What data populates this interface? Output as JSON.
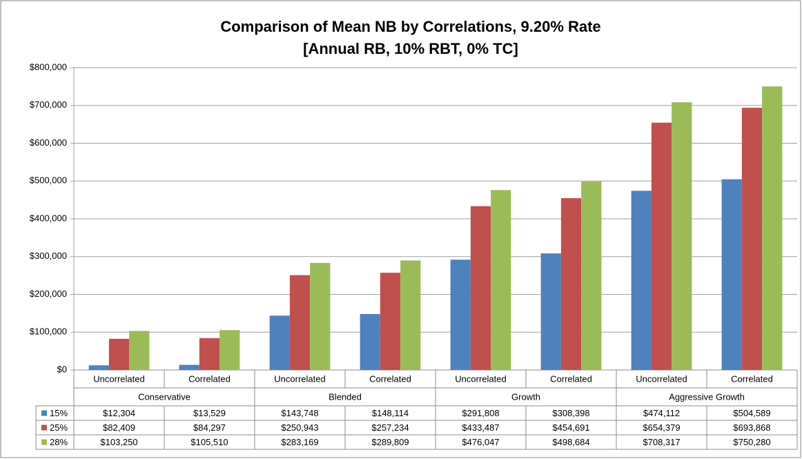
{
  "chart_data": {
    "type": "bar",
    "title": "Comparison of Mean NB by Correlations, 9.20% Rate",
    "subtitle": "[Annual RB, 10% RBT, 0% TC]",
    "categories": [
      "Uncorrelated",
      "Correlated",
      "Uncorrelated",
      "Correlated",
      "Uncorrelated",
      "Correlated",
      "Uncorrelated",
      "Correlated"
    ],
    "category_groups": [
      "Conservative",
      "Blended",
      "Growth",
      "Aggressive Growth"
    ],
    "series": [
      {
        "name": "15%",
        "color": "#4f81bd",
        "values": [
          12304,
          13529,
          143748,
          148114,
          291808,
          308398,
          474112,
          504589
        ],
        "value_labels": [
          "$12,304",
          "$13,529",
          "$143,748",
          "$148,114",
          "$291,808",
          "$308,398",
          "$474,112",
          "$504,589"
        ]
      },
      {
        "name": "25%",
        "color": "#c0504d",
        "values": [
          82409,
          84297,
          250943,
          257234,
          433487,
          454691,
          654379,
          693868
        ],
        "value_labels": [
          "$82,409",
          "$84,297",
          "$250,943",
          "$257,234",
          "$433,487",
          "$454,691",
          "$654,379",
          "$693,868"
        ]
      },
      {
        "name": "28%",
        "color": "#9bbb59",
        "values": [
          103250,
          105510,
          283169,
          289809,
          476047,
          498684,
          708317,
          750280
        ],
        "value_labels": [
          "$103,250",
          "$105,510",
          "$283,169",
          "$289,809",
          "$476,047",
          "$498,684",
          "$708,317",
          "$750,280"
        ]
      }
    ],
    "ylim": [
      0,
      800000
    ],
    "yticks": [
      {
        "value": 0,
        "label": "$0"
      },
      {
        "value": 100000,
        "label": "$100,000"
      },
      {
        "value": 200000,
        "label": "$200,000"
      },
      {
        "value": 300000,
        "label": "$300,000"
      },
      {
        "value": 400000,
        "label": "$400,000"
      },
      {
        "value": 500000,
        "label": "$500,000"
      },
      {
        "value": 600000,
        "label": "$600,000"
      },
      {
        "value": 700000,
        "label": "$700,000"
      },
      {
        "value": 800000,
        "label": "$800,000"
      }
    ],
    "grid": true
  }
}
